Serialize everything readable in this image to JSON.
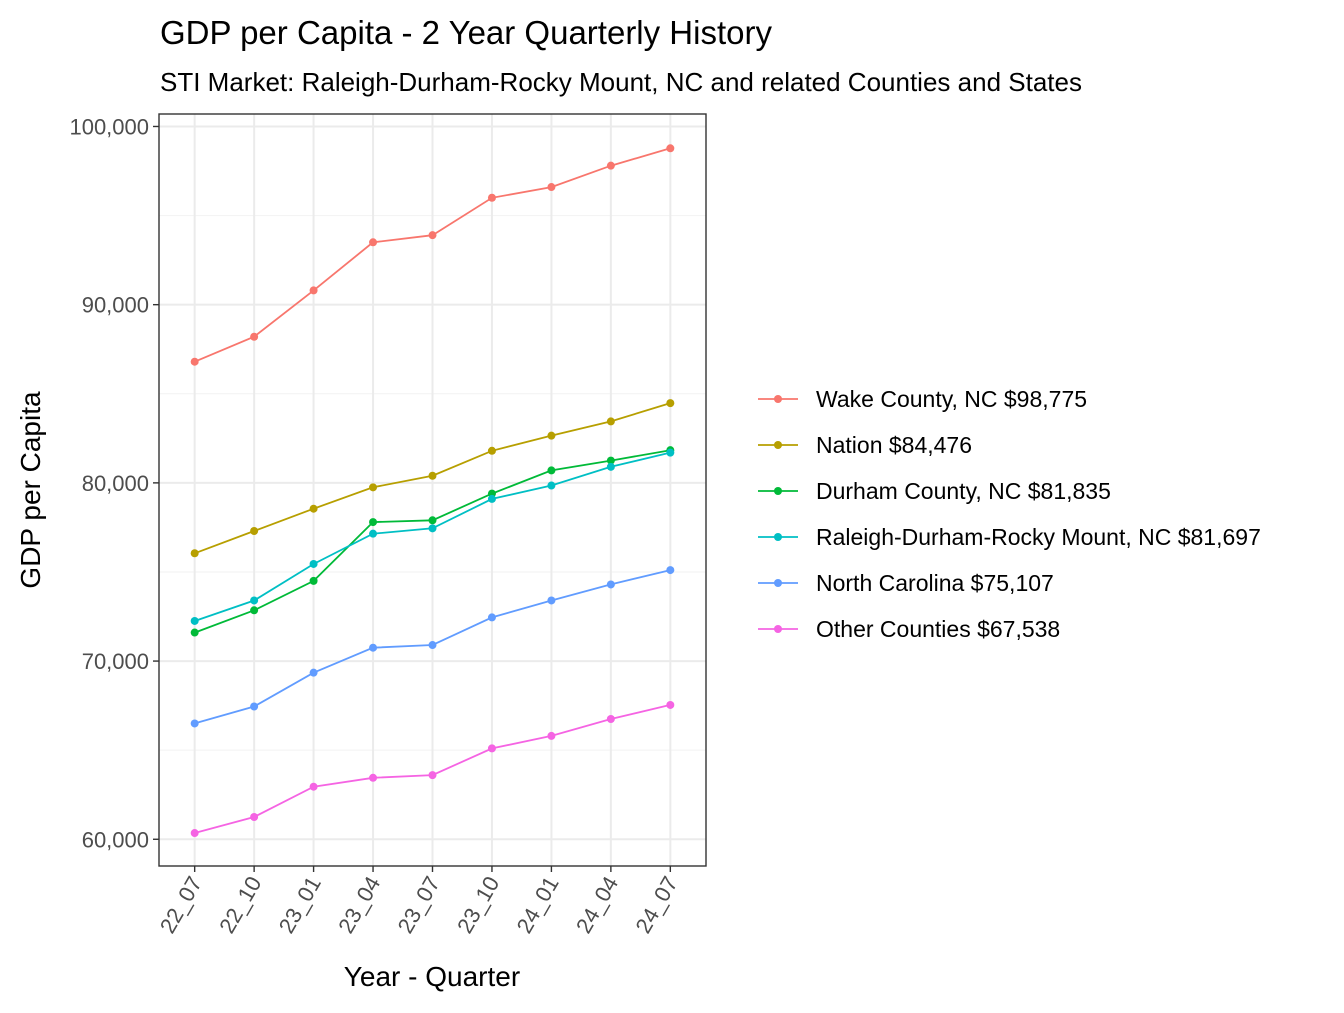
{
  "chart_data": {
    "type": "line",
    "title": "GDP per Capita - 2 Year Quarterly History",
    "subtitle": "STI Market: Raleigh-Durham-Rocky Mount, NC and related Counties and States",
    "xlabel": "Year - Quarter",
    "ylabel": "GDP per Capita",
    "categories": [
      "22_07",
      "22_10",
      "23_01",
      "23_04",
      "23_07",
      "23_10",
      "24_01",
      "24_04",
      "24_07"
    ],
    "ylim": [
      58500,
      100700
    ],
    "yticks": [
      60000,
      70000,
      80000,
      90000,
      100000
    ],
    "ytick_labels": [
      "60,000",
      "70,000",
      "80,000",
      "90,000",
      "100,000"
    ],
    "grid": true,
    "legend_position": "right",
    "series": [
      {
        "name": "Wake County, NC $98,775",
        "color": "#F8766D",
        "values": [
          86800,
          88200,
          90800,
          93500,
          93900,
          96000,
          96600,
          97800,
          98775
        ]
      },
      {
        "name": "Nation $84,476",
        "color": "#B79F00",
        "values": [
          76050,
          77300,
          78550,
          79750,
          80400,
          81800,
          82650,
          83450,
          84476
        ]
      },
      {
        "name": "Durham County, NC $81,835",
        "color": "#00BA38",
        "values": [
          71600,
          72850,
          74500,
          77800,
          77900,
          79400,
          80700,
          81250,
          81835
        ]
      },
      {
        "name": "Raleigh-Durham-Rocky Mount, NC $81,697",
        "color": "#00BFC4",
        "values": [
          72250,
          73400,
          75450,
          77150,
          77450,
          79100,
          79850,
          80900,
          81697
        ]
      },
      {
        "name": "North Carolina $75,107",
        "color": "#619CFF",
        "values": [
          66500,
          67450,
          69350,
          70750,
          70900,
          72450,
          73400,
          74300,
          75107
        ]
      },
      {
        "name": "Other Counties $67,538",
        "color": "#F564E3",
        "values": [
          60350,
          61250,
          62950,
          63450,
          63600,
          65100,
          65800,
          66750,
          67538
        ]
      }
    ]
  }
}
